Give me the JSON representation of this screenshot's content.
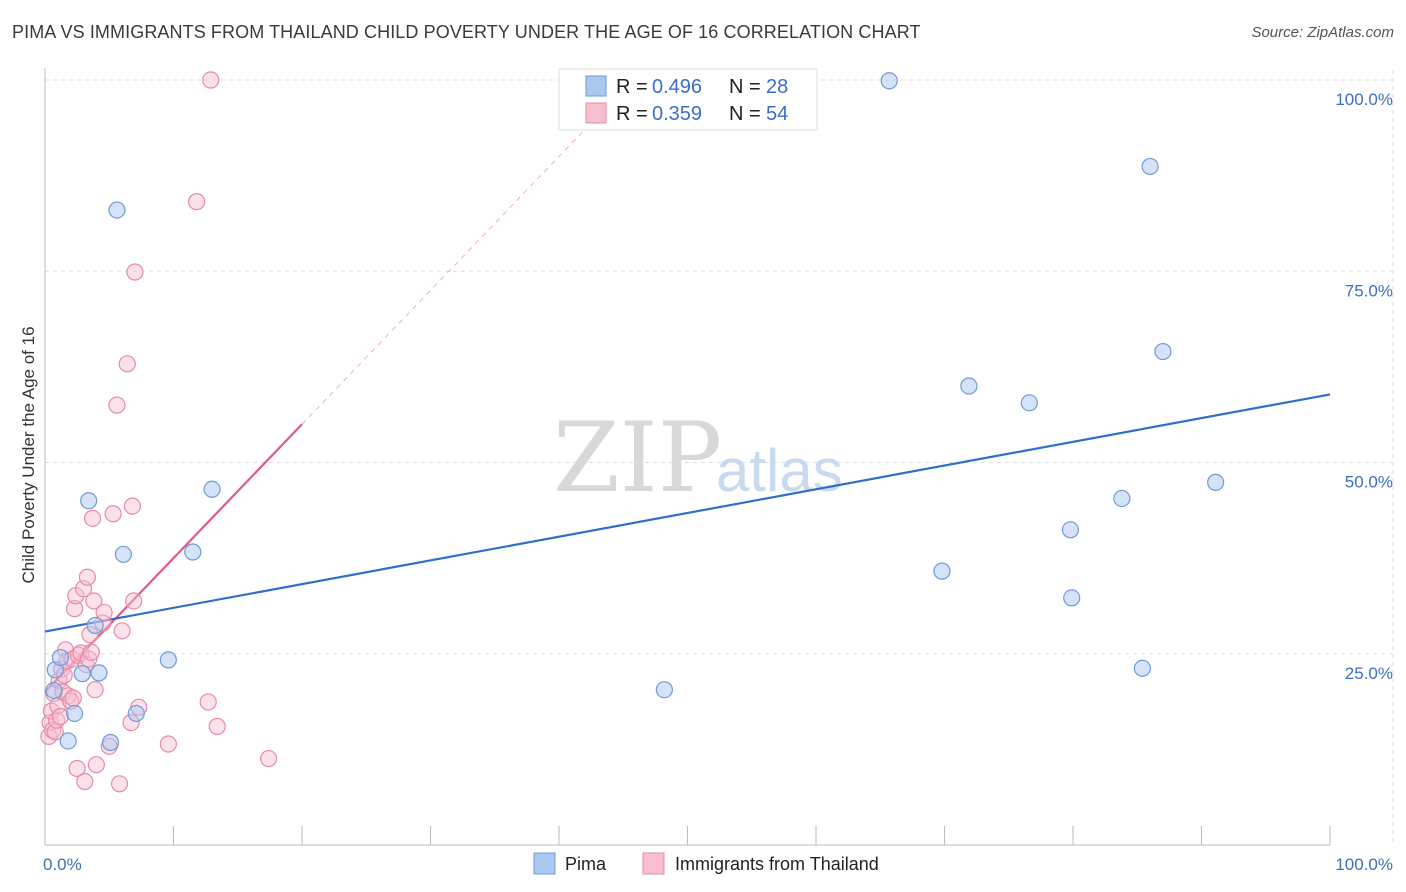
{
  "header": {
    "title": "PIMA VS IMMIGRANTS FROM THAILAND CHILD POVERTY UNDER THE AGE OF 16 CORRELATION CHART",
    "source": "Source: ZipAtlas.com"
  },
  "watermark": {
    "zip": "ZIP",
    "atlas": "atlas"
  },
  "colors": {
    "pima_fill": "#aac8ef",
    "pima_stroke": "#6f9ad6",
    "pima_line": "#2f6fc8",
    "thai_fill": "#f7bfd0",
    "thai_stroke": "#e88aa6",
    "thai_line": "#e05a87",
    "label_blue": "#3b6fc4",
    "grid": "#dddddd"
  },
  "legend": {
    "pima": {
      "r_label": "R =",
      "r_value": "0.496",
      "n_label": "N =",
      "n_value": "28"
    },
    "thai": {
      "r_label": "R =",
      "r_value": "0.359",
      "n_label": "N =",
      "n_value": "54"
    }
  },
  "chart_data": {
    "type": "scatter",
    "title": "PIMA VS IMMIGRANTS FROM THAILAND CHILD POVERTY UNDER THE AGE OF 16 CORRELATION CHART",
    "xlabel": "",
    "ylabel": "Child Poverty Under the Age of 16",
    "xlim": [
      0,
      100
    ],
    "ylim": [
      0,
      100
    ],
    "x_tick_labels": [
      "0.0%",
      "100.0%"
    ],
    "y_tick_labels": [
      "25.0%",
      "50.0%",
      "75.0%",
      "100.0%"
    ],
    "y_tick_values": [
      25,
      50,
      75,
      100
    ],
    "grid": true,
    "legend_position": "top-center",
    "series": [
      {
        "name": "Pima",
        "R": 0.496,
        "N": 28,
        "points": [
          [
            0.7,
            20.2
          ],
          [
            0.8,
            22.9
          ],
          [
            1.2,
            24.5
          ],
          [
            1.8,
            13.6
          ],
          [
            2.3,
            17.2
          ],
          [
            2.9,
            22.4
          ],
          [
            3.4,
            45.0
          ],
          [
            3.9,
            28.7
          ],
          [
            4.2,
            22.5
          ],
          [
            5.1,
            13.4
          ],
          [
            5.6,
            83.0
          ],
          [
            6.1,
            38.0
          ],
          [
            7.1,
            17.2
          ],
          [
            9.6,
            24.2
          ],
          [
            11.5,
            38.3
          ],
          [
            13.0,
            46.5
          ],
          [
            48.2,
            20.3
          ],
          [
            65.7,
            99.9
          ],
          [
            69.8,
            35.8
          ],
          [
            71.9,
            60.0
          ],
          [
            76.6,
            57.8
          ],
          [
            79.8,
            41.2
          ],
          [
            79.9,
            32.3
          ],
          [
            83.8,
            45.3
          ],
          [
            85.4,
            23.1
          ],
          [
            86.0,
            88.7
          ],
          [
            87.0,
            64.5
          ],
          [
            91.1,
            47.4
          ]
        ],
        "trend": {
          "x0": 0,
          "y0": 27.9,
          "x1": 100,
          "y1": 58.9
        }
      },
      {
        "name": "Immigrants from Thailand",
        "R": 0.359,
        "N": 54,
        "points": [
          [
            0.3,
            14.2
          ],
          [
            0.4,
            16.0
          ],
          [
            0.5,
            17.5
          ],
          [
            0.6,
            15.0
          ],
          [
            0.7,
            19.8
          ],
          [
            0.8,
            14.8
          ],
          [
            0.9,
            16.3
          ],
          [
            1.0,
            18.2
          ],
          [
            1.1,
            21.5
          ],
          [
            1.2,
            16.8
          ],
          [
            1.3,
            23.0
          ],
          [
            1.4,
            20.0
          ],
          [
            1.5,
            22.2
          ],
          [
            1.6,
            25.5
          ],
          [
            1.7,
            24.0
          ],
          [
            1.8,
            19.5
          ],
          [
            2.0,
            18.8
          ],
          [
            2.1,
            24.3
          ],
          [
            2.2,
            19.2
          ],
          [
            2.3,
            30.9
          ],
          [
            2.4,
            32.6
          ],
          [
            2.5,
            10.0
          ],
          [
            2.6,
            24.8
          ],
          [
            2.8,
            25.1
          ],
          [
            3.0,
            33.5
          ],
          [
            3.1,
            8.3
          ],
          [
            3.2,
            23.6
          ],
          [
            3.3,
            35.0
          ],
          [
            3.4,
            24.3
          ],
          [
            3.5,
            27.5
          ],
          [
            3.6,
            25.2
          ],
          [
            3.7,
            42.7
          ],
          [
            3.8,
            31.9
          ],
          [
            3.9,
            20.3
          ],
          [
            4.0,
            10.5
          ],
          [
            4.5,
            29.0
          ],
          [
            4.6,
            30.4
          ],
          [
            5.0,
            12.9
          ],
          [
            5.3,
            43.3
          ],
          [
            5.6,
            57.5
          ],
          [
            5.8,
            8.0
          ],
          [
            6.0,
            28.0
          ],
          [
            6.4,
            62.9
          ],
          [
            6.7,
            16.0
          ],
          [
            6.8,
            44.3
          ],
          [
            6.9,
            31.9
          ],
          [
            7.0,
            74.9
          ],
          [
            7.3,
            18.0
          ],
          [
            9.6,
            13.2
          ],
          [
            11.8,
            84.1
          ],
          [
            12.7,
            18.7
          ],
          [
            12.9,
            100.0
          ],
          [
            13.4,
            15.5
          ],
          [
            17.4,
            11.3
          ]
        ],
        "trend": {
          "x0": 0,
          "y0": 20.0,
          "x1": 20,
          "y1": 55.0
        },
        "trend_extension": {
          "x0": 20,
          "y0": 55.0,
          "x1": 42,
          "y1": 93.5
        }
      }
    ]
  },
  "bottom_legend": {
    "pima_label": "Pima",
    "thai_label": "Immigrants from Thailand"
  }
}
